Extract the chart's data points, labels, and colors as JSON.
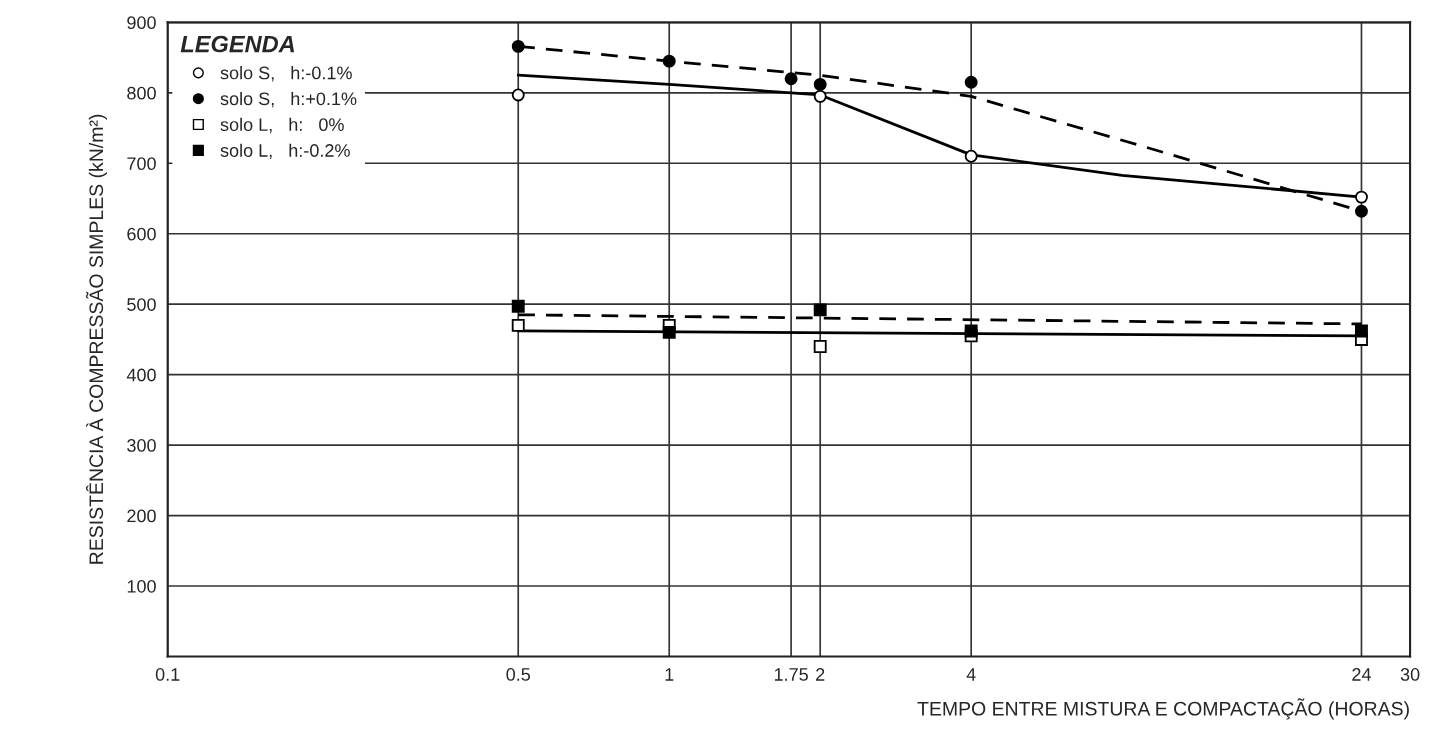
{
  "chart_data": {
    "type": "scatter",
    "xlabel": "TEMPO ENTRE MISTURA E COMPACTAÇÃO (HORAS)",
    "ylabel": "RESISTÊNCIA À COMPRESSÃO SIMPLES (kN/m²)",
    "legend_title": "LEGENDA",
    "log": "x",
    "xlim": [
      0.1,
      30
    ],
    "xticks": [
      0.1,
      0.5,
      1,
      1.75,
      2,
      4,
      24,
      30
    ],
    "ylim": [
      0,
      900
    ],
    "yticks": [
      100,
      200,
      300,
      400,
      500,
      600,
      700,
      800,
      900
    ],
    "grid": true,
    "legend": "top left",
    "series": [
      {
        "name": "solo S,   h:-0.1%",
        "color": "#ffffff",
        "marker": "circle",
        "x": [
          0.5,
          2,
          4,
          24
        ],
        "values": [
          797,
          795,
          710,
          652
        ]
      },
      {
        "name": "solo S,   h:+0.1%",
        "color": "#000000",
        "marker": "circle",
        "x": [
          0.5,
          1,
          1.75,
          2,
          4,
          24
        ],
        "values": [
          866,
          845,
          820,
          812,
          815,
          632
        ]
      },
      {
        "name": "solo L,   h:   0%",
        "color": "#ffffff",
        "marker": "square",
        "x": [
          0.5,
          1,
          2,
          4,
          24
        ],
        "values": [
          470,
          470,
          440,
          455,
          450
        ]
      },
      {
        "name": "solo L,   h:-0.2%",
        "color": "#000000",
        "marker": "square",
        "x": [
          0.5,
          1,
          2,
          4,
          24
        ],
        "values": [
          497,
          460,
          492,
          462,
          462
        ]
      },
      {
        "type": "line",
        "color": "#000000",
        "line_style": "dashed",
        "marker": "none",
        "x": [
          0.5,
          1,
          2,
          4,
          9,
          24
        ],
        "values": [
          866,
          845,
          825,
          795,
          722,
          632
        ]
      },
      {
        "type": "line",
        "color": "#000000",
        "line_style": "solid",
        "marker": "none",
        "x": [
          0.5,
          1,
          1.75,
          2,
          4,
          8,
          24
        ],
        "values": [
          825,
          812,
          800,
          797,
          712,
          683,
          652
        ]
      },
      {
        "type": "line",
        "color": "#000000",
        "line_style": "dashed",
        "marker": "none",
        "x": [
          0.5,
          24
        ],
        "values": [
          485,
          472
        ]
      },
      {
        "type": "line",
        "color": "#000000",
        "line_style": "solid",
        "marker": "none",
        "x": [
          0.5,
          24
        ],
        "values": [
          462,
          455
        ]
      }
    ]
  }
}
